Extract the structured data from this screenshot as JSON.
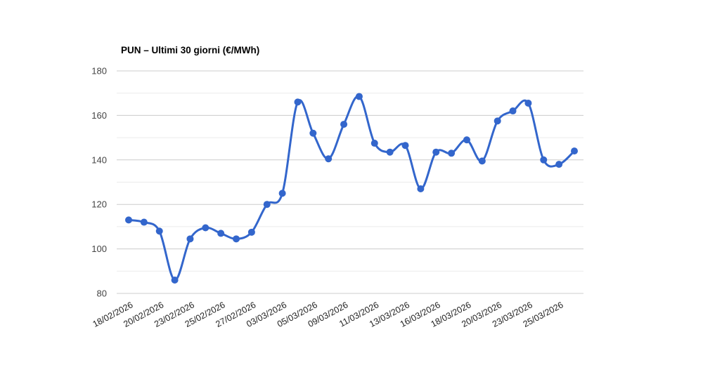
{
  "chart_data": {
    "type": "line",
    "title": "PUN – Ultimi 30 giorni (€/MWh)",
    "unit": "€/MWh",
    "legend": "none",
    "grid": true,
    "marker": "circle",
    "ylim": [
      80,
      180
    ],
    "y_ticks": [
      80,
      100,
      120,
      140,
      160,
      180
    ],
    "y_minor_ticks": [
      90,
      110,
      130,
      150,
      170
    ],
    "x_tick_labels": [
      "18/02/2026",
      "20/02/2026",
      "23/02/2026",
      "25/02/2026",
      "27/02/2026",
      "03/03/2026",
      "05/03/2026",
      "09/03/2026",
      "11/03/2026",
      "13/03/2026",
      "16/03/2026",
      "18/03/2026",
      "20/03/2026",
      "23/03/2026",
      "25/03/2026"
    ],
    "x_tick_indices": [
      0,
      2,
      4,
      6,
      8,
      10,
      12,
      14,
      16,
      18,
      20,
      22,
      24,
      26,
      28
    ],
    "series": [
      {
        "name": "PUN",
        "values": [
          113,
          112,
          108,
          86,
          104.5,
          109.5,
          107,
          104.5,
          107.5,
          120,
          125,
          166,
          152,
          140.5,
          156,
          168.5,
          147.5,
          143.5,
          146.5,
          127,
          143.5,
          143,
          149,
          139.5,
          157.5,
          162,
          165.5,
          140,
          138,
          144
        ]
      }
    ],
    "colors": {
      "series": "#3366cc",
      "grid_major": "#cccccc",
      "grid_minor": "#ebebeb",
      "y_label_text": "#444444",
      "x_label_text": "#222222",
      "title_text": "#000000",
      "background": "#ffffff"
    }
  }
}
